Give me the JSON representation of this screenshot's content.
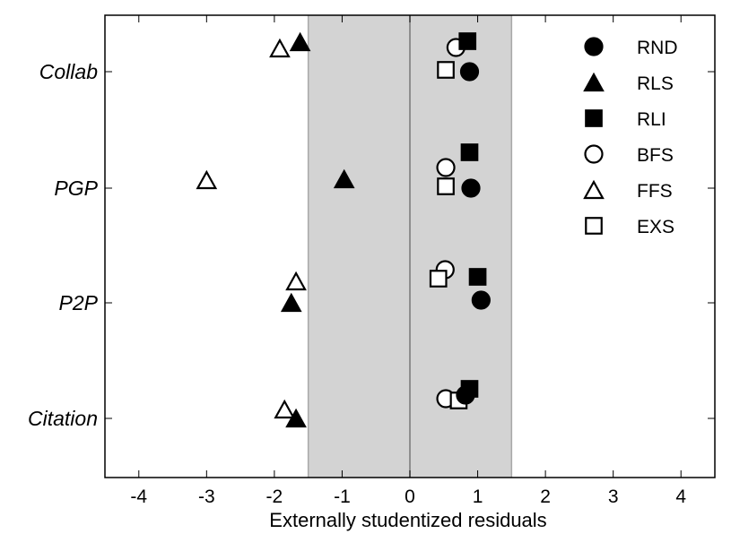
{
  "chart_data": {
    "type": "scatter",
    "xlabel": "Externally studentized residuals",
    "ylabel": "",
    "xlim": [
      -4.5,
      4.5
    ],
    "xticks": [
      -4,
      -3,
      -2,
      -1,
      0,
      1,
      2,
      3,
      4
    ],
    "xtick_labels": [
      "-4",
      "-3",
      "-2",
      "-1",
      "0",
      "1",
      "2",
      "3",
      "4"
    ],
    "categories": [
      "Collab",
      "PGP",
      "P2P",
      "Citation"
    ],
    "shaded_band": [
      -1.5,
      1.5
    ],
    "reference_line": 0,
    "legend_position": "top-right",
    "series": [
      {
        "name": "RND",
        "marker": "circle",
        "filled": true,
        "values": [
          0.88,
          0.9,
          1.05,
          0.82
        ]
      },
      {
        "name": "RLS",
        "marker": "triangle",
        "filled": true,
        "values": [
          -1.62,
          -0.97,
          -1.75,
          -1.68
        ]
      },
      {
        "name": "RLI",
        "marker": "square",
        "filled": true,
        "values": [
          0.85,
          0.88,
          1.0,
          0.88
        ]
      },
      {
        "name": "BFS",
        "marker": "circle",
        "filled": false,
        "values": [
          0.68,
          0.53,
          0.52,
          0.53
        ]
      },
      {
        "name": "FFS",
        "marker": "triangle",
        "filled": false,
        "values": [
          -1.92,
          -3.0,
          -1.68,
          -1.85
        ]
      },
      {
        "name": "EXS",
        "marker": "square",
        "filled": false,
        "values": [
          0.53,
          0.53,
          0.42,
          0.72
        ]
      }
    ]
  }
}
